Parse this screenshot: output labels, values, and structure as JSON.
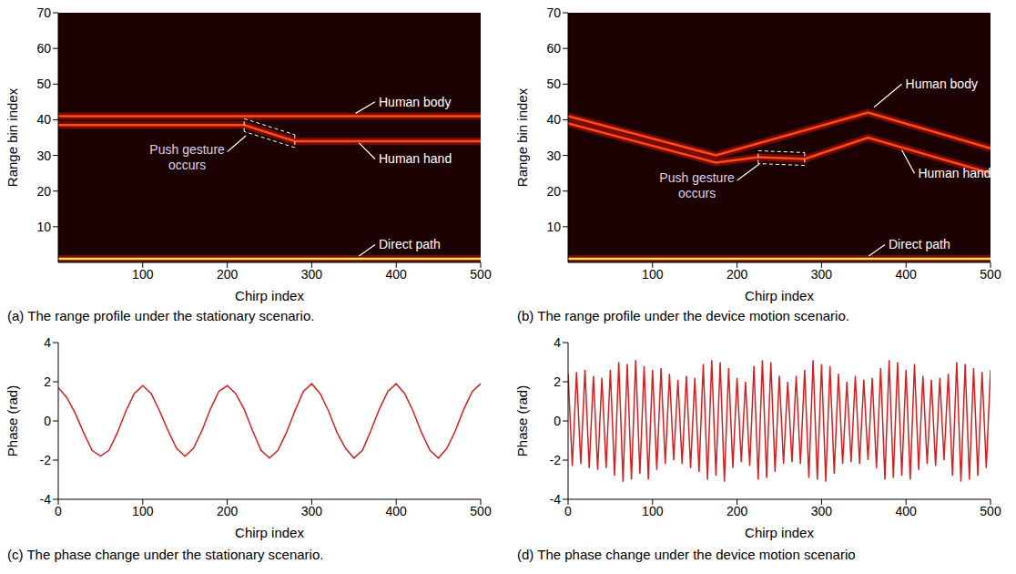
{
  "chart_data": [
    {
      "type": "profile",
      "caption": "(a) The range profile under the stationary scenario.",
      "x_label": "Chirp index",
      "y_label": "Range bin index",
      "xlim": [
        0,
        500
      ],
      "xticks": [
        100,
        200,
        300,
        400,
        500
      ],
      "ylim": [
        0,
        70
      ],
      "yticks": [
        10,
        20,
        30,
        40,
        50,
        60,
        70
      ],
      "series": [
        {
          "color": "#ff4a1a",
          "x": [
            0,
            500
          ],
          "values": [
            41,
            41
          ]
        },
        {
          "color": "#ff4a1a",
          "x": [
            0,
            220,
            280,
            500
          ],
          "values": [
            38.5,
            38.5,
            34,
            34
          ]
        },
        {
          "color": "#ffe45c",
          "x": [
            0,
            500
          ],
          "values": [
            1,
            1
          ]
        }
      ],
      "highlight_x": [
        220,
        280
      ],
      "annotations": [
        {
          "text": "Human body",
          "x": 375,
          "y": 45,
          "arrow_to": [
            352,
            41.8
          ]
        },
        {
          "text": "Human hand",
          "x": 375,
          "y": 29,
          "arrow_to": [
            356,
            33.5
          ]
        },
        {
          "text": "Push gesture occurs",
          "x": 200,
          "y": 31,
          "arrow_to": [
            222,
            35.5
          ]
        },
        {
          "text": "Direct path",
          "x": 375,
          "y": 5,
          "arrow_to": [
            356,
            1.8
          ]
        }
      ]
    },
    {
      "type": "profile",
      "caption": "(b) The range profile under the device motion scenario.",
      "x_label": "Chirp index",
      "y_label": "Range bin index",
      "xlim": [
        0,
        500
      ],
      "xticks": [
        100,
        200,
        300,
        400,
        500
      ],
      "ylim": [
        0,
        70
      ],
      "yticks": [
        10,
        20,
        30,
        40,
        50,
        60,
        70
      ],
      "series": [
        {
          "color": "#ff4a1a",
          "x": [
            0,
            175,
            355,
            500
          ],
          "values": [
            41,
            30,
            42,
            32
          ]
        },
        {
          "color": "#ff4a1a",
          "x": [
            0,
            175,
            225,
            280,
            355,
            500
          ],
          "values": [
            39,
            28,
            29.5,
            29,
            35,
            25
          ]
        },
        {
          "color": "#ffe45c",
          "x": [
            0,
            500
          ],
          "values": [
            1,
            1
          ]
        }
      ],
      "highlight_x": [
        225,
        280
      ],
      "annotations": [
        {
          "text": "Human body",
          "x": 395,
          "y": 50,
          "arrow_to": [
            362,
            43.5
          ]
        },
        {
          "text": "Human hand",
          "x": 410,
          "y": 25,
          "arrow_to": [
            395,
            31.5
          ]
        },
        {
          "text": "Push gesture occurs",
          "x": 200,
          "y": 23,
          "arrow_to": [
            226,
            27.5
          ]
        },
        {
          "text": "Direct path",
          "x": 375,
          "y": 5,
          "arrow_to": [
            356,
            1.8
          ]
        }
      ]
    },
    {
      "type": "line",
      "caption": "(c) The phase change under the stationary scenario.",
      "x_label": "Chirp index",
      "y_label": "Phase (rad)",
      "xlim": [
        0,
        500
      ],
      "xticks": [
        0,
        100,
        200,
        300,
        400,
        500
      ],
      "ylim": [
        -4,
        4
      ],
      "yticks": [
        -4,
        -2,
        0,
        2,
        4
      ],
      "color": "#d42020",
      "x": [
        0,
        10,
        20,
        30,
        40,
        50,
        60,
        70,
        80,
        90,
        100,
        110,
        120,
        130,
        140,
        150,
        160,
        170,
        180,
        190,
        200,
        210,
        220,
        230,
        240,
        250,
        260,
        270,
        280,
        290,
        300,
        310,
        320,
        330,
        340,
        350,
        360,
        370,
        380,
        390,
        400,
        410,
        420,
        430,
        440,
        450,
        460,
        470,
        480,
        490,
        500
      ],
      "values": [
        1.7,
        1.2,
        0.4,
        -0.6,
        -1.5,
        -1.8,
        -1.5,
        -0.6,
        0.5,
        1.4,
        1.8,
        1.4,
        0.5,
        -0.5,
        -1.4,
        -1.8,
        -1.4,
        -0.5,
        0.6,
        1.5,
        1.8,
        1.4,
        0.6,
        -0.5,
        -1.5,
        -1.9,
        -1.5,
        -0.6,
        0.5,
        1.5,
        1.9,
        1.4,
        0.5,
        -0.6,
        -1.4,
        -1.9,
        -1.5,
        -0.5,
        0.6,
        1.5,
        1.9,
        1.4,
        0.5,
        -0.6,
        -1.5,
        -1.9,
        -1.4,
        -0.5,
        0.6,
        1.5,
        1.9
      ]
    },
    {
      "type": "line",
      "caption": "(d) The phase change under the device motion scenario",
      "x_label": "Chirp index",
      "y_label": "Phase (rad)",
      "xlim": [
        0,
        500
      ],
      "xticks": [
        0,
        100,
        200,
        300,
        400,
        500
      ],
      "ylim": [
        -4,
        4
      ],
      "yticks": [
        -4,
        -2,
        0,
        2,
        4
      ],
      "color": "#d42020",
      "x": [
        0,
        5,
        10,
        15,
        20,
        25,
        30,
        35,
        40,
        45,
        50,
        55,
        60,
        65,
        70,
        75,
        80,
        85,
        90,
        95,
        100,
        105,
        110,
        115,
        120,
        125,
        130,
        135,
        140,
        145,
        150,
        155,
        160,
        165,
        170,
        175,
        180,
        185,
        190,
        195,
        200,
        205,
        210,
        215,
        220,
        225,
        230,
        235,
        240,
        245,
        250,
        255,
        260,
        265,
        270,
        275,
        280,
        285,
        290,
        295,
        300,
        305,
        310,
        315,
        320,
        325,
        330,
        335,
        340,
        345,
        350,
        355,
        360,
        365,
        370,
        375,
        380,
        385,
        390,
        395,
        400,
        405,
        410,
        415,
        420,
        425,
        430,
        435,
        440,
        445,
        450,
        455,
        460,
        465,
        470,
        475,
        480,
        485,
        490,
        495,
        500
      ],
      "values": [
        2.4,
        -2.3,
        2.5,
        -2.2,
        2.6,
        -2.4,
        2.3,
        -2.5,
        2.2,
        -2.4,
        2.6,
        -2.8,
        3.0,
        -3.1,
        2.9,
        -3.0,
        3.1,
        -2.7,
        2.8,
        -3.0,
        2.6,
        -2.5,
        2.7,
        -2.2,
        2.4,
        -2.0,
        2.1,
        -2.2,
        2.3,
        -2.4,
        2.2,
        -2.6,
        2.9,
        -3.0,
        3.1,
        -2.8,
        3.0,
        -3.1,
        2.7,
        -2.4,
        2.2,
        -2.1,
        2.0,
        -2.3,
        2.8,
        -3.0,
        3.1,
        -2.9,
        3.0,
        -2.6,
        2.3,
        -2.2,
        2.0,
        -2.1,
        2.3,
        -2.2,
        2.6,
        -2.9,
        3.1,
        -3.0,
        2.9,
        -3.1,
        2.8,
        -2.7,
        2.4,
        -2.2,
        2.0,
        -2.1,
        2.3,
        -2.2,
        2.1,
        -2.0,
        2.2,
        -2.4,
        2.7,
        -3.0,
        3.1,
        -2.9,
        3.0,
        -2.8,
        2.6,
        -3.0,
        2.9,
        -2.5,
        2.3,
        -2.2,
        2.1,
        -2.3,
        2.2,
        -2.0,
        2.4,
        -2.8,
        3.0,
        -3.1,
        2.9,
        -3.0,
        2.7,
        -2.8,
        2.5,
        -2.4,
        2.6
      ]
    }
  ]
}
